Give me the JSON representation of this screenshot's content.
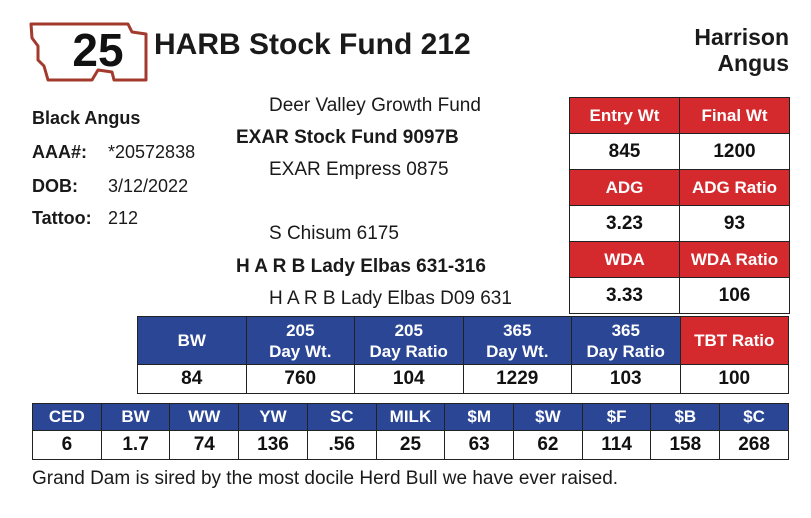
{
  "lot": {
    "number": "25"
  },
  "title": "HARB Stock Fund 212",
  "ranch": {
    "line1": "Harrison",
    "line2": "Angus"
  },
  "animal": {
    "breed": "Black Angus",
    "aaa_label": "AAA#:",
    "aaa_value": "*20572838",
    "dob_label": "DOB:",
    "dob_value": "3/12/2022",
    "tattoo_label": "Tattoo:",
    "tattoo_value": "212"
  },
  "pedigree": {
    "sire_sire": "Deer Valley Growth Fund",
    "sire": "EXAR Stock Fund 9097B",
    "sire_dam": "EXAR Empress 0875",
    "dam_sire": "S Chisum 6175",
    "dam": "H A R B Lady Elbas 631-316",
    "dam_dam": "H A R B Lady Elbas D09 631"
  },
  "performance": {
    "entry_wt_label": "Entry Wt",
    "entry_wt": "845",
    "final_wt_label": "Final Wt",
    "final_wt": "1200",
    "adg_label": "ADG",
    "adg": "3.23",
    "adg_ratio_label": "ADG Ratio",
    "adg_ratio": "93",
    "wda_label": "WDA",
    "wda": "3.33",
    "wda_ratio_label": "WDA Ratio",
    "wda_ratio": "106"
  },
  "weights": {
    "headers": [
      {
        "line1": "BW",
        "line2": ""
      },
      {
        "line1": "205",
        "line2": "Day Wt."
      },
      {
        "line1": "205",
        "line2": "Day Ratio"
      },
      {
        "line1": "365",
        "line2": "Day Wt."
      },
      {
        "line1": "365",
        "line2": "Day Ratio"
      },
      {
        "line1": "TBT Ratio",
        "line2": ""
      }
    ],
    "values": [
      "84",
      "760",
      "104",
      "1229",
      "103",
      "100"
    ]
  },
  "epds": {
    "headers": [
      "CED",
      "BW",
      "WW",
      "YW",
      "SC",
      "MILK",
      "$M",
      "$W",
      "$F",
      "$B",
      "$C"
    ],
    "values": [
      "6",
      "1.7",
      "74",
      "136",
      ".56",
      "25",
      "63",
      "62",
      "114",
      "158",
      "268"
    ]
  },
  "note": "Grand Dam is sired by the most docile Herd Bull we have ever raised.",
  "colors": {
    "red": "#d42a2e",
    "blue": "#2a4694",
    "badge_outline": "#a33a2e"
  }
}
